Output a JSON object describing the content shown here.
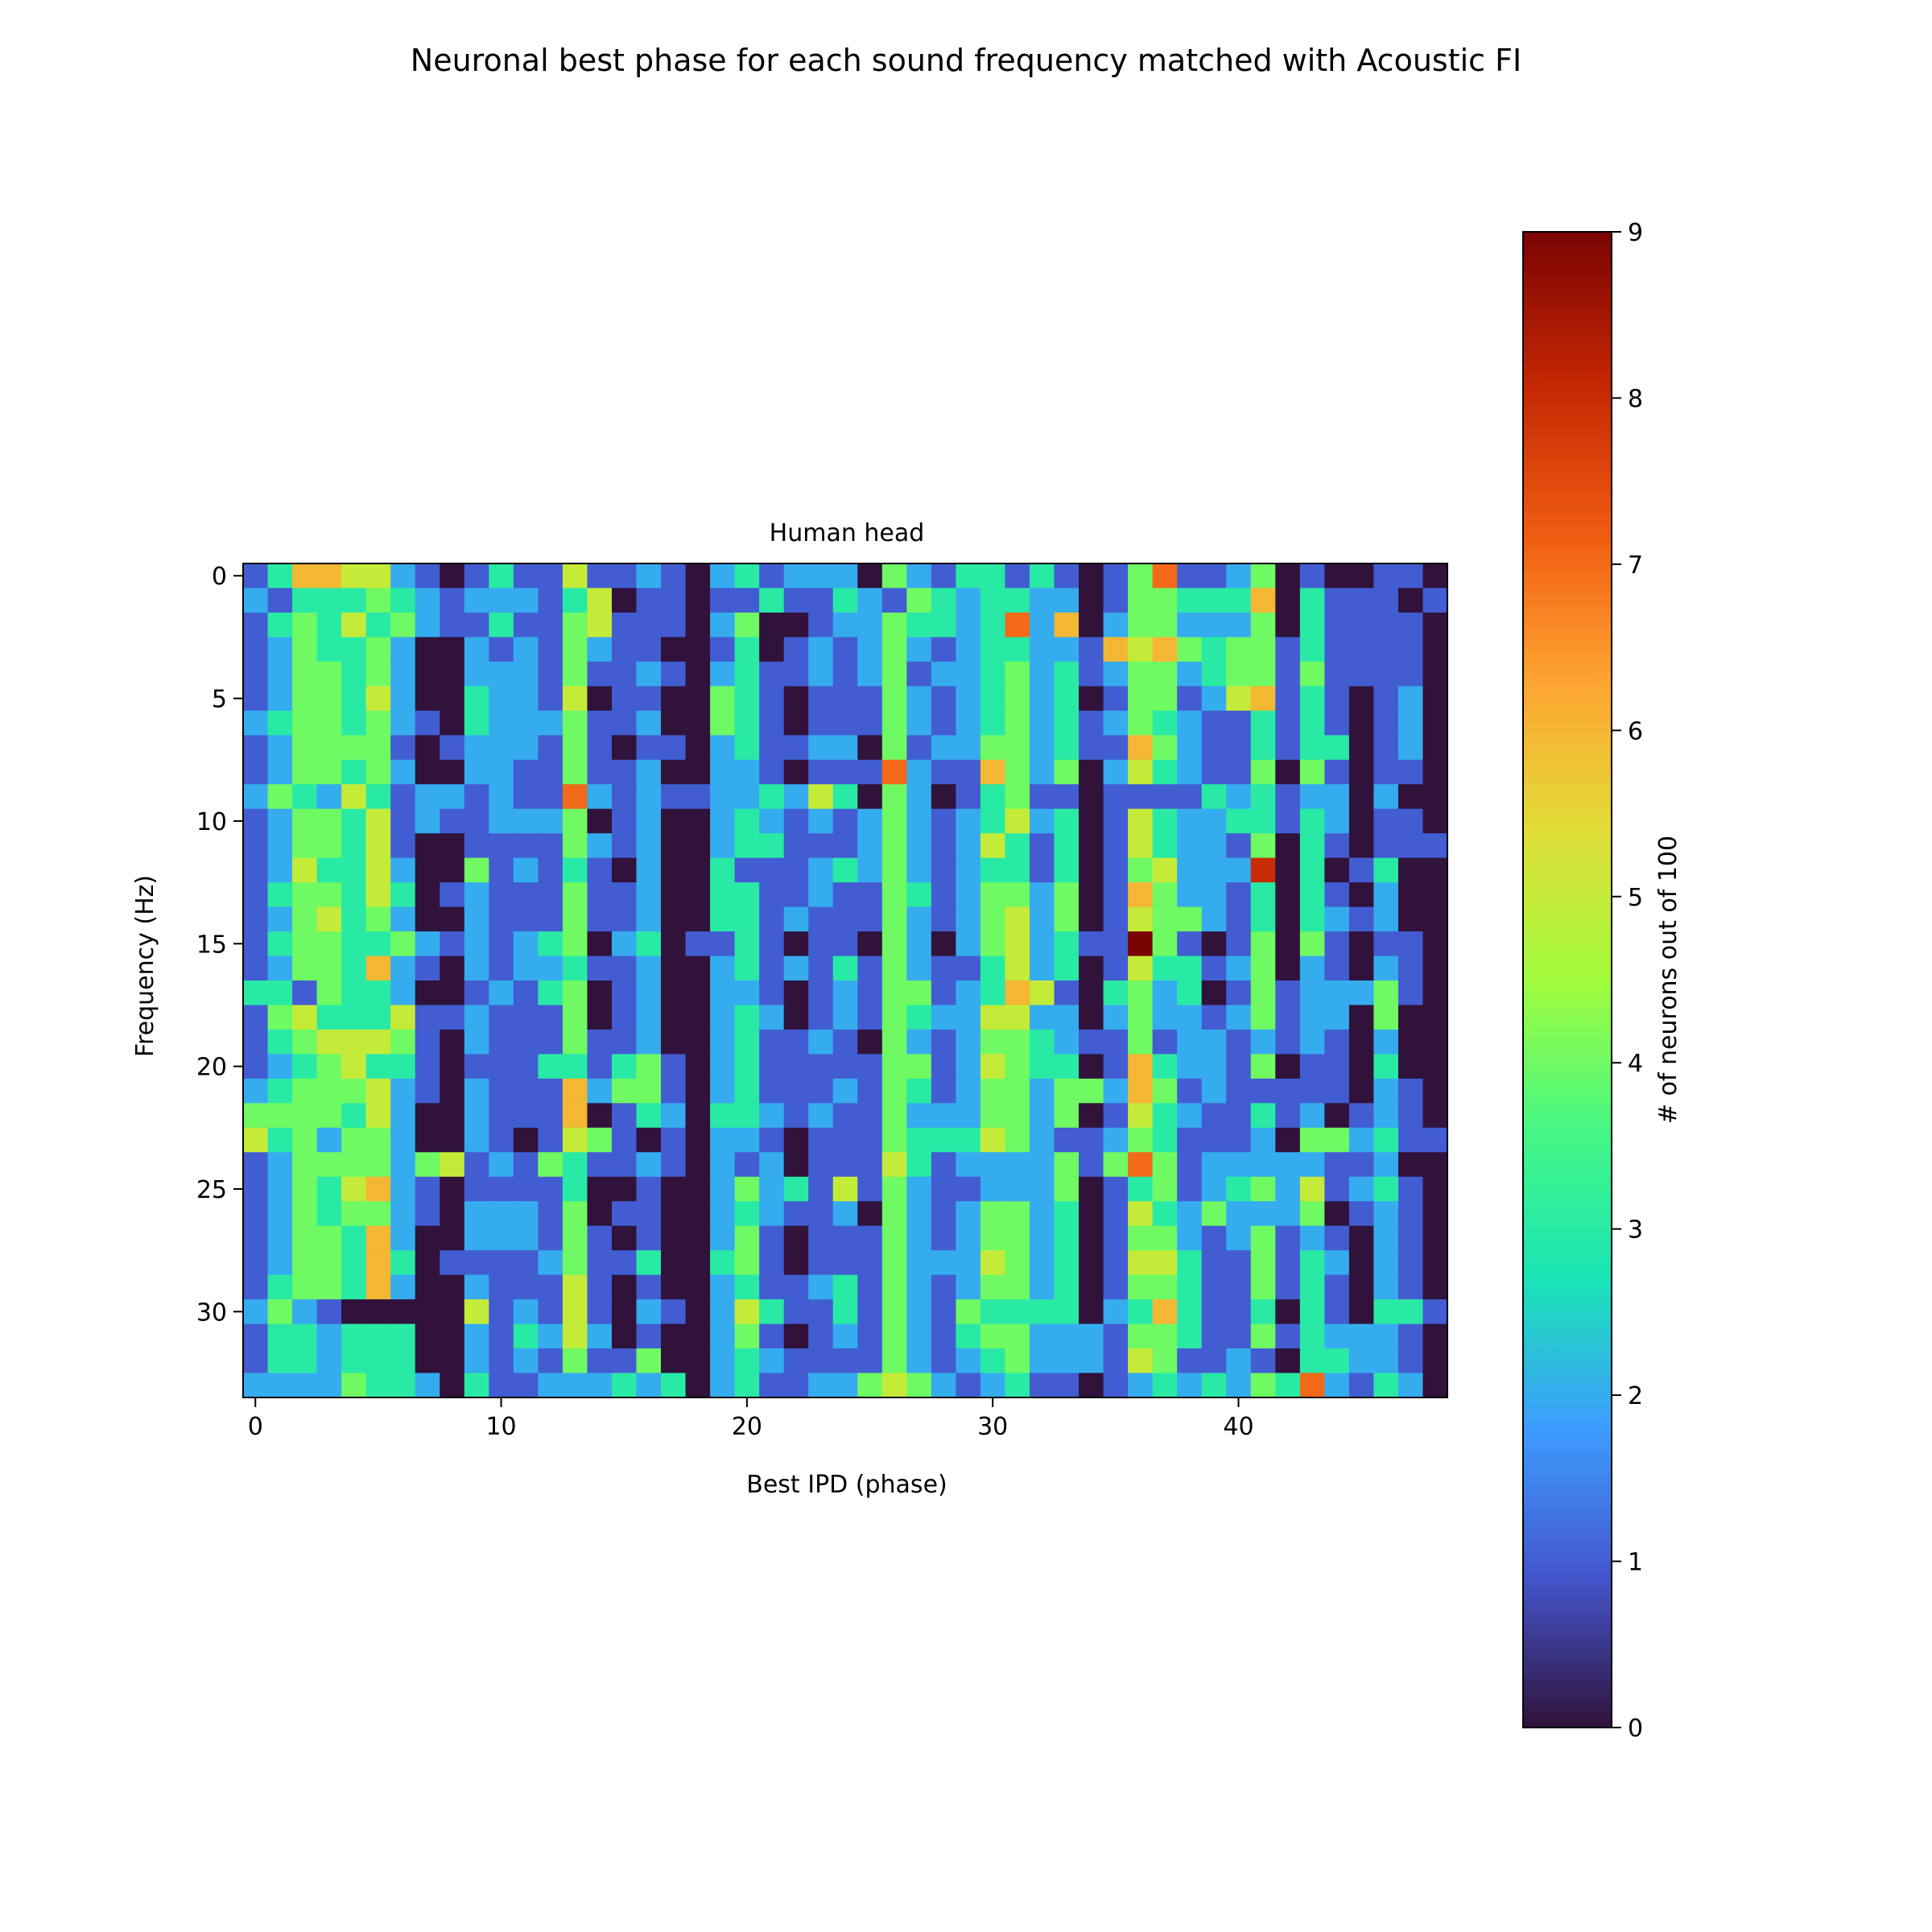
{
  "figure": {
    "suptitle": "Neuronal best phase for each sound frequency matched with Acoustic FI"
  },
  "chart_data": {
    "type": "heatmap",
    "title": "Human head",
    "xlabel": "Best IPD (phase)",
    "ylabel": "Frequency (Hz)",
    "x_ticks": [
      0,
      10,
      20,
      30,
      40
    ],
    "y_ticks": [
      0,
      5,
      10,
      15,
      20,
      25,
      30
    ],
    "n_cols": 49,
    "n_rows": 34,
    "x_range": [
      -0.5,
      48.5
    ],
    "y_range": [
      -0.5,
      33.5
    ],
    "y_axis_inverted": true,
    "grid": false,
    "colormap": "turbo",
    "colorbar": {
      "label": "# of neurons out of 100",
      "min": 0,
      "max": 9,
      "ticks": [
        0,
        1,
        2,
        3,
        4,
        5,
        6,
        7,
        8,
        9
      ]
    },
    "values": [
      [
        1,
        3,
        6,
        6,
        5,
        5,
        2,
        1,
        0,
        1,
        3,
        1,
        1,
        5,
        1,
        1,
        2,
        1,
        0,
        2,
        3,
        1,
        2,
        2,
        2,
        0,
        4,
        2,
        1,
        3,
        3,
        1,
        3,
        1,
        0,
        1,
        4,
        7,
        1,
        1,
        2,
        4,
        0,
        1,
        0,
        0,
        1,
        1,
        0
      ],
      [
        2,
        1,
        3,
        3,
        3,
        4,
        3,
        2,
        1,
        2,
        2,
        2,
        1,
        3,
        5,
        0,
        1,
        1,
        0,
        1,
        1,
        3,
        1,
        1,
        3,
        2,
        1,
        4,
        3,
        2,
        3,
        3,
        2,
        2,
        0,
        1,
        4,
        4,
        3,
        3,
        3,
        6,
        0,
        3,
        1,
        1,
        1,
        0,
        1
      ],
      [
        1,
        3,
        4,
        3,
        5,
        3,
        4,
        2,
        1,
        1,
        3,
        1,
        1,
        4,
        5,
        1,
        1,
        1,
        0,
        2,
        4,
        0,
        0,
        1,
        2,
        2,
        4,
        3,
        3,
        2,
        3,
        7,
        2,
        6,
        0,
        2,
        4,
        4,
        2,
        2,
        2,
        4,
        0,
        3,
        1,
        1,
        1,
        1,
        0
      ],
      [
        1,
        2,
        4,
        3,
        3,
        4,
        2,
        0,
        0,
        2,
        1,
        2,
        1,
        4,
        2,
        1,
        1,
        0,
        0,
        1,
        3,
        0,
        1,
        2,
        1,
        2,
        4,
        2,
        1,
        2,
        3,
        3,
        2,
        2,
        1,
        6,
        5,
        6,
        4,
        3,
        4,
        4,
        1,
        3,
        1,
        1,
        1,
        1,
        0
      ],
      [
        1,
        2,
        4,
        4,
        3,
        4,
        2,
        0,
        0,
        2,
        2,
        2,
        1,
        4,
        1,
        1,
        2,
        1,
        0,
        2,
        3,
        1,
        1,
        2,
        1,
        2,
        4,
        1,
        2,
        2,
        3,
        4,
        2,
        3,
        1,
        2,
        4,
        4,
        2,
        3,
        4,
        4,
        1,
        4,
        1,
        1,
        1,
        1,
        0
      ],
      [
        1,
        2,
        4,
        4,
        3,
        5,
        2,
        0,
        0,
        3,
        2,
        2,
        1,
        5,
        0,
        1,
        1,
        0,
        0,
        4,
        3,
        1,
        0,
        1,
        1,
        1,
        4,
        2,
        1,
        2,
        3,
        4,
        2,
        3,
        0,
        1,
        4,
        4,
        1,
        2,
        5,
        6,
        1,
        3,
        1,
        0,
        1,
        2,
        0
      ],
      [
        2,
        3,
        4,
        4,
        3,
        4,
        2,
        1,
        0,
        3,
        2,
        2,
        2,
        4,
        1,
        1,
        2,
        0,
        0,
        4,
        3,
        1,
        0,
        1,
        1,
        1,
        4,
        2,
        1,
        2,
        3,
        4,
        2,
        3,
        1,
        2,
        4,
        3,
        2,
        1,
        1,
        3,
        1,
        3,
        1,
        0,
        1,
        2,
        0
      ],
      [
        1,
        2,
        4,
        4,
        4,
        4,
        1,
        0,
        1,
        2,
        2,
        2,
        1,
        4,
        1,
        0,
        1,
        1,
        0,
        2,
        3,
        1,
        1,
        2,
        2,
        0,
        4,
        1,
        2,
        2,
        4,
        4,
        2,
        3,
        1,
        1,
        6,
        4,
        2,
        1,
        1,
        3,
        1,
        3,
        3,
        0,
        1,
        2,
        0
      ],
      [
        1,
        2,
        4,
        4,
        3,
        4,
        2,
        0,
        0,
        2,
        2,
        1,
        1,
        4,
        1,
        1,
        2,
        0,
        0,
        2,
        2,
        1,
        0,
        1,
        1,
        1,
        7,
        2,
        1,
        1,
        6,
        4,
        2,
        4,
        0,
        2,
        5,
        3,
        2,
        1,
        1,
        4,
        0,
        4,
        1,
        0,
        1,
        1,
        0
      ],
      [
        2,
        4,
        3,
        2,
        5,
        3,
        1,
        2,
        2,
        1,
        2,
        1,
        1,
        7,
        2,
        1,
        2,
        1,
        1,
        2,
        2,
        3,
        2,
        5,
        3,
        0,
        4,
        2,
        0,
        1,
        3,
        4,
        1,
        1,
        0,
        1,
        1,
        1,
        1,
        3,
        2,
        3,
        1,
        2,
        2,
        0,
        2,
        0,
        0
      ],
      [
        1,
        2,
        4,
        4,
        3,
        5,
        1,
        2,
        1,
        1,
        2,
        2,
        2,
        4,
        0,
        1,
        2,
        0,
        0,
        2,
        3,
        2,
        1,
        2,
        1,
        2,
        4,
        2,
        1,
        2,
        3,
        5,
        2,
        3,
        0,
        1,
        5,
        3,
        2,
        2,
        3,
        3,
        1,
        3,
        2,
        0,
        1,
        1,
        0
      ],
      [
        1,
        2,
        4,
        4,
        3,
        5,
        1,
        0,
        0,
        1,
        1,
        1,
        1,
        4,
        2,
        1,
        2,
        0,
        0,
        2,
        3,
        3,
        1,
        1,
        1,
        2,
        4,
        2,
        1,
        2,
        5,
        3,
        1,
        3,
        0,
        1,
        5,
        3,
        2,
        2,
        1,
        4,
        0,
        3,
        1,
        0,
        1,
        1,
        1
      ],
      [
        1,
        2,
        5,
        3,
        3,
        5,
        2,
        0,
        0,
        4,
        1,
        2,
        1,
        3,
        1,
        0,
        2,
        0,
        0,
        3,
        1,
        1,
        1,
        2,
        3,
        2,
        4,
        2,
        1,
        2,
        3,
        3,
        1,
        3,
        0,
        1,
        4,
        5,
        2,
        2,
        2,
        8,
        0,
        3,
        0,
        1,
        3,
        0,
        0
      ],
      [
        1,
        3,
        4,
        4,
        3,
        5,
        3,
        0,
        1,
        2,
        1,
        1,
        1,
        4,
        1,
        1,
        2,
        0,
        0,
        3,
        3,
        1,
        1,
        2,
        1,
        1,
        4,
        3,
        1,
        2,
        4,
        4,
        2,
        4,
        0,
        1,
        6,
        4,
        2,
        2,
        1,
        3,
        0,
        3,
        1,
        0,
        2,
        0,
        0
      ],
      [
        1,
        2,
        4,
        5,
        3,
        4,
        2,
        0,
        0,
        2,
        1,
        1,
        1,
        4,
        1,
        1,
        2,
        0,
        0,
        3,
        3,
        1,
        2,
        1,
        1,
        1,
        4,
        2,
        1,
        2,
        4,
        5,
        2,
        4,
        0,
        1,
        5,
        4,
        4,
        2,
        1,
        3,
        0,
        3,
        2,
        1,
        2,
        0,
        0
      ],
      [
        1,
        3,
        4,
        4,
        3,
        3,
        4,
        2,
        1,
        2,
        1,
        2,
        3,
        4,
        0,
        2,
        3,
        0,
        1,
        1,
        3,
        1,
        0,
        1,
        1,
        0,
        4,
        2,
        0,
        2,
        4,
        5,
        2,
        3,
        1,
        1,
        9,
        4,
        1,
        0,
        1,
        4,
        0,
        4,
        1,
        0,
        1,
        1,
        0
      ],
      [
        1,
        2,
        4,
        4,
        3,
        6,
        2,
        1,
        0,
        2,
        1,
        2,
        2,
        3,
        1,
        1,
        2,
        0,
        0,
        2,
        3,
        1,
        2,
        1,
        3,
        1,
        4,
        2,
        1,
        1,
        3,
        5,
        2,
        3,
        0,
        1,
        5,
        3,
        3,
        1,
        2,
        4,
        0,
        2,
        1,
        0,
        2,
        1,
        0
      ],
      [
        3,
        3,
        1,
        4,
        3,
        3,
        2,
        0,
        0,
        1,
        2,
        1,
        3,
        4,
        0,
        1,
        2,
        0,
        0,
        2,
        2,
        1,
        0,
        1,
        2,
        1,
        4,
        4,
        1,
        2,
        3,
        6,
        5,
        1,
        0,
        3,
        4,
        2,
        3,
        0,
        1,
        4,
        1,
        2,
        2,
        2,
        4,
        1,
        0
      ],
      [
        1,
        4,
        5,
        3,
        3,
        3,
        5,
        1,
        1,
        2,
        1,
        1,
        1,
        4,
        0,
        1,
        2,
        0,
        0,
        2,
        3,
        2,
        0,
        1,
        2,
        1,
        4,
        3,
        2,
        2,
        5,
        5,
        2,
        2,
        0,
        2,
        4,
        2,
        2,
        1,
        2,
        4,
        1,
        2,
        2,
        0,
        4,
        0,
        0
      ],
      [
        1,
        3,
        4,
        5,
        5,
        5,
        4,
        1,
        0,
        2,
        1,
        1,
        1,
        4,
        1,
        1,
        2,
        0,
        0,
        2,
        3,
        1,
        1,
        2,
        1,
        0,
        4,
        2,
        1,
        2,
        4,
        4,
        3,
        2,
        1,
        1,
        4,
        1,
        2,
        2,
        1,
        2,
        1,
        2,
        1,
        0,
        2,
        0,
        0
      ],
      [
        1,
        2,
        3,
        4,
        5,
        3,
        3,
        1,
        0,
        1,
        1,
        1,
        3,
        3,
        1,
        3,
        4,
        1,
        0,
        2,
        3,
        1,
        1,
        1,
        1,
        1,
        4,
        4,
        1,
        2,
        5,
        4,
        3,
        3,
        0,
        1,
        6,
        3,
        2,
        2,
        1,
        4,
        0,
        1,
        1,
        0,
        3,
        0,
        0
      ],
      [
        2,
        3,
        4,
        4,
        4,
        5,
        2,
        1,
        0,
        2,
        1,
        1,
        1,
        6,
        2,
        4,
        4,
        1,
        0,
        2,
        3,
        1,
        1,
        1,
        2,
        1,
        4,
        3,
        1,
        2,
        4,
        4,
        2,
        4,
        4,
        2,
        6,
        4,
        1,
        2,
        1,
        1,
        1,
        1,
        1,
        0,
        2,
        1,
        0
      ],
      [
        4,
        4,
        4,
        4,
        3,
        5,
        2,
        0,
        0,
        2,
        1,
        1,
        1,
        6,
        0,
        1,
        3,
        2,
        0,
        3,
        3,
        2,
        1,
        2,
        1,
        1,
        4,
        2,
        2,
        2,
        4,
        4,
        2,
        4,
        0,
        1,
        5,
        3,
        2,
        1,
        1,
        3,
        1,
        2,
        0,
        1,
        2,
        1,
        0
      ],
      [
        5,
        3,
        4,
        2,
        4,
        4,
        2,
        0,
        0,
        2,
        1,
        0,
        1,
        5,
        4,
        1,
        0,
        1,
        0,
        2,
        2,
        1,
        0,
        1,
        1,
        1,
        4,
        3,
        3,
        3,
        5,
        4,
        2,
        1,
        1,
        2,
        4,
        3,
        1,
        1,
        1,
        2,
        0,
        4,
        4,
        2,
        3,
        1,
        1
      ],
      [
        1,
        2,
        4,
        4,
        4,
        4,
        2,
        4,
        5,
        1,
        2,
        1,
        4,
        3,
        1,
        1,
        2,
        1,
        0,
        2,
        1,
        2,
        0,
        1,
        1,
        1,
        5,
        3,
        1,
        2,
        2,
        2,
        2,
        4,
        1,
        4,
        7,
        4,
        1,
        2,
        2,
        2,
        2,
        2,
        1,
        1,
        2,
        0,
        0
      ],
      [
        1,
        2,
        4,
        3,
        5,
        6,
        2,
        1,
        0,
        1,
        1,
        1,
        1,
        3,
        0,
        0,
        1,
        0,
        0,
        2,
        4,
        2,
        3,
        1,
        5,
        1,
        4,
        2,
        1,
        1,
        2,
        2,
        2,
        4,
        0,
        1,
        3,
        4,
        1,
        2,
        3,
        4,
        2,
        5,
        1,
        2,
        3,
        1,
        0
      ],
      [
        1,
        2,
        4,
        3,
        4,
        4,
        2,
        1,
        0,
        2,
        2,
        2,
        1,
        4,
        0,
        1,
        1,
        0,
        0,
        2,
        3,
        2,
        1,
        1,
        2,
        0,
        4,
        2,
        1,
        2,
        4,
        4,
        2,
        3,
        0,
        1,
        5,
        3,
        2,
        4,
        2,
        2,
        2,
        4,
        0,
        1,
        2,
        1,
        0
      ],
      [
        1,
        2,
        4,
        4,
        3,
        6,
        2,
        0,
        0,
        2,
        2,
        2,
        1,
        4,
        1,
        0,
        1,
        0,
        0,
        2,
        4,
        1,
        0,
        1,
        1,
        1,
        4,
        2,
        1,
        2,
        4,
        4,
        2,
        3,
        0,
        1,
        4,
        4,
        2,
        1,
        2,
        4,
        1,
        2,
        1,
        0,
        2,
        1,
        0
      ],
      [
        1,
        2,
        4,
        4,
        3,
        6,
        3,
        0,
        1,
        1,
        1,
        1,
        2,
        4,
        1,
        1,
        3,
        0,
        0,
        3,
        4,
        1,
        0,
        1,
        1,
        1,
        4,
        2,
        2,
        2,
        5,
        4,
        2,
        3,
        0,
        1,
        5,
        5,
        3,
        1,
        1,
        4,
        1,
        3,
        2,
        0,
        2,
        1,
        0
      ],
      [
        1,
        3,
        4,
        4,
        3,
        6,
        2,
        0,
        0,
        2,
        1,
        1,
        1,
        5,
        1,
        0,
        1,
        0,
        0,
        2,
        3,
        1,
        1,
        2,
        3,
        1,
        4,
        2,
        1,
        2,
        4,
        4,
        2,
        3,
        0,
        1,
        4,
        4,
        3,
        1,
        1,
        4,
        1,
        3,
        1,
        0,
        2,
        1,
        0
      ],
      [
        2,
        4,
        2,
        1,
        0,
        0,
        0,
        0,
        0,
        5,
        1,
        2,
        1,
        5,
        1,
        0,
        2,
        1,
        0,
        2,
        5,
        3,
        1,
        1,
        3,
        1,
        4,
        2,
        1,
        4,
        3,
        3,
        3,
        3,
        0,
        2,
        3,
        6,
        3,
        1,
        1,
        3,
        0,
        3,
        1,
        0,
        3,
        3,
        1
      ],
      [
        1,
        3,
        3,
        2,
        3,
        3,
        3,
        0,
        0,
        2,
        1,
        3,
        2,
        5,
        2,
        0,
        1,
        0,
        0,
        2,
        4,
        1,
        0,
        1,
        2,
        1,
        4,
        2,
        1,
        3,
        4,
        4,
        2,
        2,
        2,
        1,
        4,
        4,
        3,
        1,
        1,
        4,
        1,
        3,
        2,
        2,
        2,
        1,
        0
      ],
      [
        1,
        3,
        3,
        2,
        3,
        3,
        3,
        0,
        0,
        2,
        1,
        2,
        1,
        4,
        1,
        1,
        4,
        0,
        0,
        2,
        3,
        2,
        1,
        1,
        1,
        1,
        4,
        2,
        1,
        2,
        3,
        4,
        2,
        2,
        2,
        1,
        5,
        4,
        1,
        1,
        2,
        1,
        0,
        3,
        3,
        2,
        2,
        1,
        0
      ],
      [
        2,
        2,
        2,
        2,
        4,
        3,
        3,
        2,
        0,
        3,
        1,
        1,
        2,
        2,
        2,
        3,
        2,
        3,
        0,
        2,
        3,
        1,
        1,
        2,
        2,
        4,
        5,
        4,
        2,
        1,
        2,
        3,
        1,
        1,
        0,
        1,
        2,
        3,
        2,
        3,
        2,
        4,
        3,
        7,
        2,
        1,
        3,
        2,
        0
      ]
    ]
  }
}
